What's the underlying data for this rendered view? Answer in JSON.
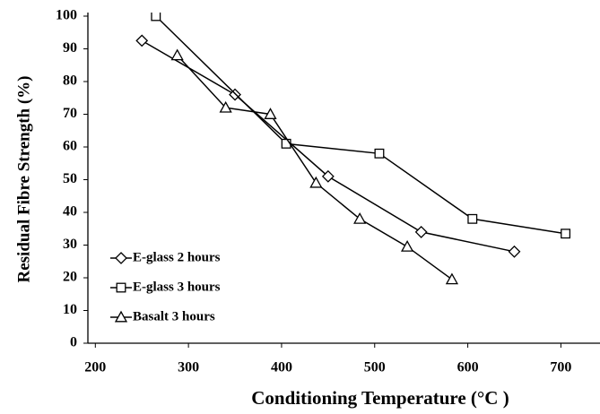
{
  "chart_data": {
    "type": "line",
    "xlabel": "Conditioning Temperature (°C )",
    "ylabel": "Residual Fibre Strength (%)",
    "xlim": [
      192,
      742
    ],
    "xticks": [
      200,
      300,
      400,
      500,
      600,
      700
    ],
    "ylim": [
      0,
      100
    ],
    "yticks": [
      0,
      10,
      20,
      30,
      40,
      50,
      60,
      70,
      80,
      90,
      100
    ],
    "legend": "lower left",
    "series": [
      {
        "name": "E-glass 2 hours",
        "color": "#000000",
        "marker": "diamond",
        "x": [
          250,
          350,
          450,
          550,
          650
        ],
        "values": [
          92.5,
          76,
          51,
          34,
          28
        ]
      },
      {
        "name": "E-glass 3 hours",
        "color": "#000000",
        "marker": "square",
        "x": [
          265,
          405,
          505,
          605,
          705
        ],
        "values": [
          100,
          61,
          58,
          38,
          33.5
        ]
      },
      {
        "name": "Basalt 3 hours",
        "color": "#000000",
        "marker": "triangle",
        "x": [
          288,
          340,
          388,
          437,
          484,
          535,
          583
        ],
        "values": [
          88,
          72,
          70,
          49,
          38,
          29.5,
          19.5
        ]
      }
    ]
  }
}
